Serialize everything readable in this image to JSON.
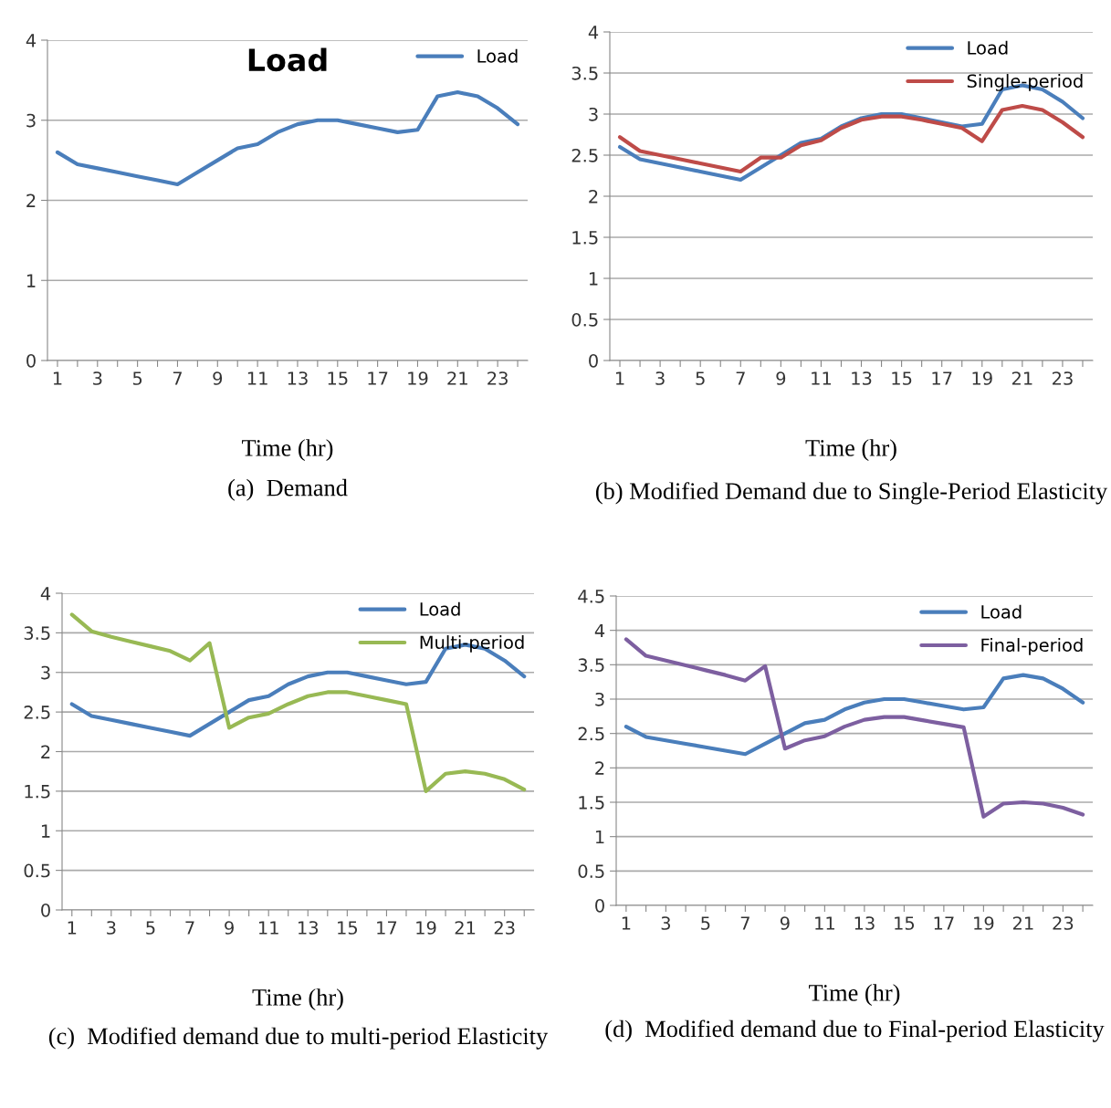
{
  "chart_data": [
    {
      "type": "line",
      "title": "Load",
      "xlabel": "Time (hr)",
      "annotations": [
        "(a)  Demand"
      ],
      "categories": [
        "1",
        null,
        "3",
        null,
        "5",
        null,
        "7",
        null,
        "9",
        null,
        "11",
        null,
        "13",
        null,
        "15",
        null,
        "17",
        null,
        "19",
        null,
        "21",
        null,
        "23",
        null
      ],
      "series": [
        {
          "name": "Load",
          "color": "#4a7ebb",
          "values": [
            2.6,
            2.45,
            2.4,
            2.35,
            2.3,
            2.25,
            2.2,
            2.35,
            2.5,
            2.65,
            2.7,
            2.85,
            2.95,
            3.0,
            3.0,
            2.95,
            2.9,
            2.85,
            2.88,
            3.3,
            3.35,
            3.3,
            3.15,
            2.95
          ]
        }
      ],
      "ylim": [
        0,
        4
      ],
      "yticks": [
        0,
        1,
        2,
        3,
        4
      ],
      "grid": "y",
      "legend": "top right",
      "marker": "none",
      "line_style": "solid"
    },
    {
      "type": "line",
      "xlabel": "Time (hr)",
      "annotations": [
        "(b) Modified Demand due to Single-Period Elasticity"
      ],
      "categories": [
        "1",
        null,
        "3",
        null,
        "5",
        null,
        "7",
        null,
        "9",
        null,
        "11",
        null,
        "13",
        null,
        "15",
        null,
        "17",
        null,
        "19",
        null,
        "21",
        null,
        "23",
        null
      ],
      "series": [
        {
          "name": "Load",
          "color": "#4a7ebb",
          "values": [
            2.6,
            2.45,
            2.4,
            2.35,
            2.3,
            2.25,
            2.2,
            2.35,
            2.5,
            2.65,
            2.7,
            2.85,
            2.95,
            3.0,
            3.0,
            2.95,
            2.9,
            2.85,
            2.88,
            3.3,
            3.35,
            3.3,
            3.15,
            2.95
          ]
        },
        {
          "name": "Single-period",
          "color": "#be4b48",
          "values": [
            2.72,
            2.55,
            2.5,
            2.45,
            2.4,
            2.35,
            2.3,
            2.47,
            2.47,
            2.62,
            2.68,
            2.83,
            2.93,
            2.97,
            2.97,
            2.93,
            2.88,
            2.83,
            2.67,
            3.05,
            3.1,
            3.05,
            2.9,
            2.72
          ]
        }
      ],
      "ylim": [
        0,
        4
      ],
      "yticks": [
        0,
        0.5,
        1,
        1.5,
        2,
        2.5,
        3,
        3.5,
        4
      ],
      "grid": "y",
      "legend": "top right",
      "marker": "none",
      "line_style": "solid"
    },
    {
      "type": "line",
      "xlabel": "Time (hr)",
      "annotations": [
        "(c)  Modified demand due to multi-period Elasticity"
      ],
      "categories": [
        "1",
        null,
        "3",
        null,
        "5",
        null,
        "7",
        null,
        "9",
        null,
        "11",
        null,
        "13",
        null,
        "15",
        null,
        "17",
        null,
        "19",
        null,
        "21",
        null,
        "23",
        null
      ],
      "series": [
        {
          "name": "Load",
          "color": "#4a7ebb",
          "values": [
            2.6,
            2.45,
            2.4,
            2.35,
            2.3,
            2.25,
            2.2,
            2.35,
            2.5,
            2.65,
            2.7,
            2.85,
            2.95,
            3.0,
            3.0,
            2.95,
            2.9,
            2.85,
            2.88,
            3.3,
            3.35,
            3.3,
            3.15,
            2.95
          ]
        },
        {
          "name": "Multi-period",
          "color": "#98b954",
          "values": [
            3.73,
            3.52,
            3.45,
            3.39,
            3.33,
            3.27,
            3.15,
            3.37,
            2.3,
            2.43,
            2.48,
            2.6,
            2.7,
            2.75,
            2.75,
            2.7,
            2.65,
            2.6,
            1.5,
            1.72,
            1.75,
            1.72,
            1.65,
            1.52
          ]
        }
      ],
      "ylim": [
        0,
        4
      ],
      "yticks": [
        0,
        0.5,
        1,
        1.5,
        2,
        2.5,
        3,
        3.5,
        4
      ],
      "grid": "y",
      "legend": "top right",
      "marker": "none",
      "line_style": "solid"
    },
    {
      "type": "line",
      "xlabel": "Time (hr)",
      "annotations": [
        "(d)  Modified demand due to Final-period Elasticity"
      ],
      "categories": [
        "1",
        null,
        "3",
        null,
        "5",
        null,
        "7",
        null,
        "9",
        null,
        "11",
        null,
        "13",
        null,
        "15",
        null,
        "17",
        null,
        "19",
        null,
        "21",
        null,
        "23",
        null
      ],
      "series": [
        {
          "name": "Load",
          "color": "#4a7ebb",
          "values": [
            2.6,
            2.45,
            2.4,
            2.35,
            2.3,
            2.25,
            2.2,
            2.35,
            2.5,
            2.65,
            2.7,
            2.85,
            2.95,
            3.0,
            3.0,
            2.95,
            2.9,
            2.85,
            2.88,
            3.3,
            3.35,
            3.3,
            3.15,
            2.95
          ]
        },
        {
          "name": "Final-period",
          "color": "#7d5fa0",
          "values": [
            3.87,
            3.63,
            3.56,
            3.49,
            3.42,
            3.35,
            3.27,
            3.48,
            2.28,
            2.4,
            2.46,
            2.6,
            2.7,
            2.74,
            2.74,
            2.69,
            2.64,
            2.59,
            1.29,
            1.48,
            1.5,
            1.48,
            1.42,
            1.32
          ]
        }
      ],
      "ylim": [
        0,
        4.5
      ],
      "yticks": [
        0,
        0.5,
        1,
        1.5,
        2,
        2.5,
        3,
        3.5,
        4,
        4.5
      ],
      "grid": "y",
      "legend": "top right",
      "marker": "none",
      "line_style": "solid"
    }
  ]
}
